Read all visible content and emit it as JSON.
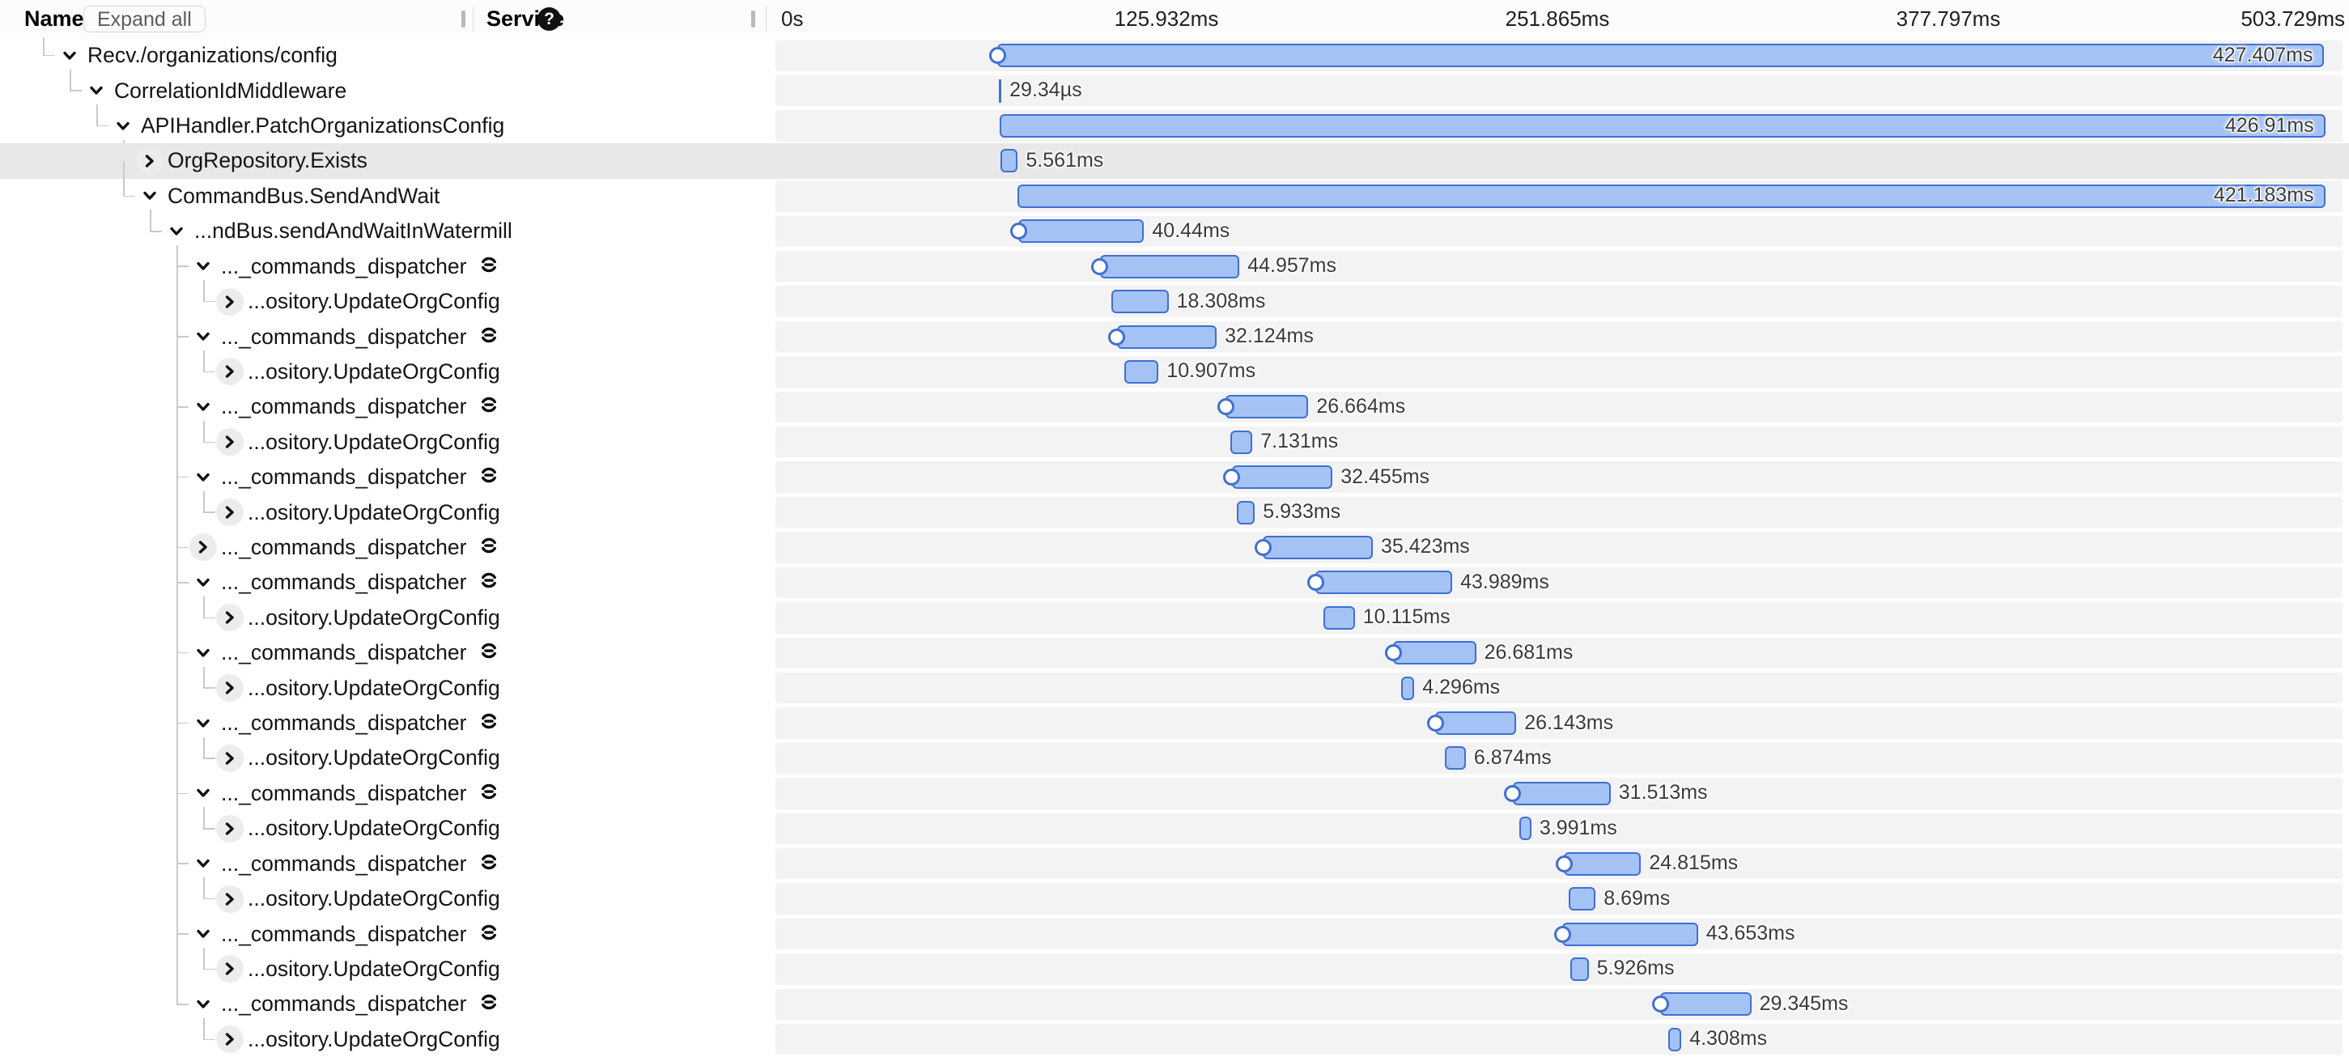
{
  "header": {
    "name_label": "Name",
    "expand_all_label": "Expand all",
    "service_label": "Service",
    "help_glyph": "?",
    "ticks": [
      "0s",
      "125.932ms",
      "251.865ms",
      "377.797ms",
      "503.729ms"
    ]
  },
  "timeline": {
    "total_ms": 503.729
  },
  "colors": {
    "bar_fill": "#a4c2f4",
    "bar_border": "#4070d0",
    "row_strip": "#f3f3f4",
    "row_highlight": "#e8e8e9",
    "connector": "#c9c9c9"
  },
  "spans": [
    {
      "name": "Recv./organizations/config",
      "depth": 1,
      "expanded": true,
      "start_ms": 71.5,
      "duration_ms": 427.407,
      "duration_label": "427.407ms",
      "inside": true,
      "marker": true,
      "link": false,
      "highlighted": false,
      "thin": false
    },
    {
      "name": "CorrelationIdMiddleware",
      "depth": 2,
      "expanded": true,
      "start_ms": 72.0,
      "duration_ms": 0.02934,
      "duration_label": "29.34µs",
      "inside": false,
      "marker": false,
      "link": false,
      "highlighted": false,
      "thin": true
    },
    {
      "name": "APIHandler.PatchOrganizationsConfig",
      "depth": 3,
      "expanded": true,
      "start_ms": 72.3,
      "duration_ms": 426.91,
      "duration_label": "426.91ms",
      "inside": true,
      "marker": false,
      "link": false,
      "highlighted": false,
      "thin": false
    },
    {
      "name": "OrgRepository.Exists",
      "depth": 4,
      "expanded": false,
      "start_ms": 72.5,
      "duration_ms": 5.561,
      "duration_label": "5.561ms",
      "inside": false,
      "marker": false,
      "link": false,
      "highlighted": true,
      "thin": false
    },
    {
      "name": "CommandBus.SendAndWait",
      "depth": 4,
      "expanded": true,
      "start_ms": 78.0,
      "duration_ms": 421.183,
      "duration_label": "421.183ms",
      "inside": true,
      "marker": false,
      "link": false,
      "highlighted": false,
      "thin": false
    },
    {
      "name": "...ndBus.sendAndWaitInWatermill",
      "depth": 5,
      "expanded": true,
      "start_ms": 78.3,
      "duration_ms": 40.44,
      "duration_label": "40.44ms",
      "inside": false,
      "marker": true,
      "link": false,
      "highlighted": false,
      "thin": false
    },
    {
      "name": "..._commands_dispatcher",
      "depth": 6,
      "expanded": true,
      "start_ms": 104.5,
      "duration_ms": 44.957,
      "duration_label": "44.957ms",
      "inside": false,
      "marker": true,
      "link": true,
      "highlighted": false,
      "thin": false
    },
    {
      "name": "...ository.UpdateOrgConfig",
      "depth": 7,
      "expanded": false,
      "start_ms": 108.3,
      "duration_ms": 18.308,
      "duration_label": "18.308ms",
      "inside": false,
      "marker": false,
      "link": false,
      "highlighted": false,
      "thin": false
    },
    {
      "name": "..._commands_dispatcher",
      "depth": 6,
      "expanded": true,
      "start_ms": 110.0,
      "duration_ms": 32.124,
      "duration_label": "32.124ms",
      "inside": false,
      "marker": true,
      "link": true,
      "highlighted": false,
      "thin": false
    },
    {
      "name": "...ository.UpdateOrgConfig",
      "depth": 7,
      "expanded": false,
      "start_ms": 112.5,
      "duration_ms": 10.907,
      "duration_label": "10.907ms",
      "inside": false,
      "marker": false,
      "link": false,
      "highlighted": false,
      "thin": false
    },
    {
      "name": "..._commands_dispatcher",
      "depth": 6,
      "expanded": true,
      "start_ms": 145.0,
      "duration_ms": 26.664,
      "duration_label": "26.664ms",
      "inside": false,
      "marker": true,
      "link": true,
      "highlighted": false,
      "thin": false
    },
    {
      "name": "...ository.UpdateOrgConfig",
      "depth": 7,
      "expanded": false,
      "start_ms": 146.5,
      "duration_ms": 7.131,
      "duration_label": "7.131ms",
      "inside": false,
      "marker": false,
      "link": false,
      "highlighted": false,
      "thin": false
    },
    {
      "name": "..._commands_dispatcher",
      "depth": 6,
      "expanded": true,
      "start_ms": 147.0,
      "duration_ms": 32.455,
      "duration_label": "32.455ms",
      "inside": false,
      "marker": true,
      "link": true,
      "highlighted": false,
      "thin": false
    },
    {
      "name": "...ository.UpdateOrgConfig",
      "depth": 7,
      "expanded": false,
      "start_ms": 148.5,
      "duration_ms": 5.933,
      "duration_label": "5.933ms",
      "inside": false,
      "marker": false,
      "link": false,
      "highlighted": false,
      "thin": false
    },
    {
      "name": "..._commands_dispatcher",
      "depth": 6,
      "expanded": false,
      "start_ms": 157.0,
      "duration_ms": 35.423,
      "duration_label": "35.423ms",
      "inside": false,
      "marker": true,
      "link": true,
      "highlighted": false,
      "thin": false
    },
    {
      "name": "..._commands_dispatcher",
      "depth": 6,
      "expanded": true,
      "start_ms": 174.0,
      "duration_ms": 43.989,
      "duration_label": "43.989ms",
      "inside": false,
      "marker": true,
      "link": true,
      "highlighted": false,
      "thin": false
    },
    {
      "name": "...ository.UpdateOrgConfig",
      "depth": 7,
      "expanded": false,
      "start_ms": 176.5,
      "duration_ms": 10.115,
      "duration_label": "10.115ms",
      "inside": false,
      "marker": false,
      "link": false,
      "highlighted": false,
      "thin": false
    },
    {
      "name": "..._commands_dispatcher",
      "depth": 6,
      "expanded": true,
      "start_ms": 199.0,
      "duration_ms": 26.681,
      "duration_label": "26.681ms",
      "inside": false,
      "marker": true,
      "link": true,
      "highlighted": false,
      "thin": false
    },
    {
      "name": "...ository.UpdateOrgConfig",
      "depth": 7,
      "expanded": false,
      "start_ms": 201.5,
      "duration_ms": 4.296,
      "duration_label": "4.296ms",
      "inside": false,
      "marker": false,
      "link": false,
      "highlighted": false,
      "thin": false
    },
    {
      "name": "..._commands_dispatcher",
      "depth": 6,
      "expanded": true,
      "start_ms": 212.5,
      "duration_ms": 26.143,
      "duration_label": "26.143ms",
      "inside": false,
      "marker": true,
      "link": true,
      "highlighted": false,
      "thin": false
    },
    {
      "name": "...ository.UpdateOrgConfig",
      "depth": 7,
      "expanded": false,
      "start_ms": 215.5,
      "duration_ms": 6.874,
      "duration_label": "6.874ms",
      "inside": false,
      "marker": false,
      "link": false,
      "highlighted": false,
      "thin": false
    },
    {
      "name": "..._commands_dispatcher",
      "depth": 6,
      "expanded": true,
      "start_ms": 237.5,
      "duration_ms": 31.513,
      "duration_label": "31.513ms",
      "inside": false,
      "marker": true,
      "link": true,
      "highlighted": false,
      "thin": false
    },
    {
      "name": "...ository.UpdateOrgConfig",
      "depth": 7,
      "expanded": false,
      "start_ms": 239.5,
      "duration_ms": 3.991,
      "duration_label": "3.991ms",
      "inside": false,
      "marker": false,
      "link": false,
      "highlighted": false,
      "thin": false
    },
    {
      "name": "..._commands_dispatcher",
      "depth": 6,
      "expanded": true,
      "start_ms": 254.0,
      "duration_ms": 24.815,
      "duration_label": "24.815ms",
      "inside": false,
      "marker": true,
      "link": true,
      "highlighted": false,
      "thin": false
    },
    {
      "name": "...ository.UpdateOrgConfig",
      "depth": 7,
      "expanded": false,
      "start_ms": 255.5,
      "duration_ms": 8.69,
      "duration_label": "8.69ms",
      "inside": false,
      "marker": false,
      "link": false,
      "highlighted": false,
      "thin": false
    },
    {
      "name": "..._commands_dispatcher",
      "depth": 6,
      "expanded": true,
      "start_ms": 253.5,
      "duration_ms": 43.653,
      "duration_label": "43.653ms",
      "inside": false,
      "marker": true,
      "link": true,
      "highlighted": false,
      "thin": false
    },
    {
      "name": "...ository.UpdateOrgConfig",
      "depth": 7,
      "expanded": false,
      "start_ms": 256.0,
      "duration_ms": 5.926,
      "duration_label": "5.926ms",
      "inside": false,
      "marker": false,
      "link": false,
      "highlighted": false,
      "thin": false
    },
    {
      "name": "..._commands_dispatcher",
      "depth": 6,
      "expanded": true,
      "start_ms": 285.0,
      "duration_ms": 29.345,
      "duration_label": "29.345ms",
      "inside": false,
      "marker": true,
      "link": true,
      "highlighted": false,
      "thin": false
    },
    {
      "name": "...ository.UpdateOrgConfig",
      "depth": 7,
      "expanded": false,
      "start_ms": 287.5,
      "duration_ms": 4.308,
      "duration_label": "4.308ms",
      "inside": false,
      "marker": false,
      "link": false,
      "highlighted": false,
      "thin": false
    }
  ]
}
